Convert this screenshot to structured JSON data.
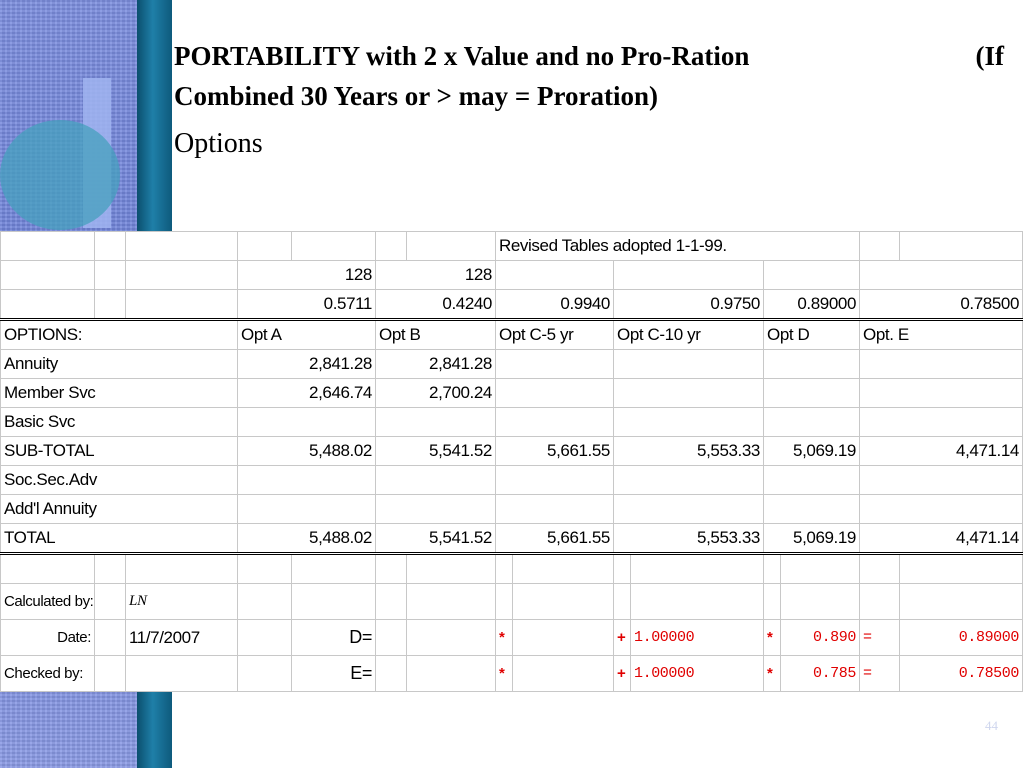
{
  "slide": {
    "title_line1a": "PORTABILITY with 2 x Value and no Pro-Ration",
    "title_line1b": "(If",
    "title_line2": "Combined 30 Years or > may = Proration)",
    "subtitle": "Options",
    "page_number": "44"
  },
  "sheet": {
    "header_note": "Revised Tables adopted 1-1-99.",
    "row_128": [
      "128",
      "128"
    ],
    "factors": [
      "0.5711",
      "0.4240",
      "0.9940",
      "0.9750",
      "0.89000",
      "0.78500"
    ],
    "options_label": "OPTIONS:",
    "columns": [
      "Opt A",
      "Opt B",
      "Opt C-5 yr",
      "Opt C-10 yr",
      "Opt D",
      "Opt. E"
    ],
    "rows": [
      {
        "label": "Annuity",
        "values": [
          "2,841.28",
          "2,841.28",
          "",
          "",
          "",
          ""
        ]
      },
      {
        "label": "Member Svc",
        "values": [
          "2,646.74",
          "2,700.24",
          "",
          "",
          "",
          ""
        ]
      },
      {
        "label": "Basic Svc",
        "values": [
          "",
          "",
          "",
          "",
          "",
          ""
        ]
      },
      {
        "label": "SUB-TOTAL",
        "values": [
          "5,488.02",
          "5,541.52",
          "5,661.55",
          "5,553.33",
          "5,069.19",
          "4,471.14"
        ]
      },
      {
        "label": "Soc.Sec.Adv",
        "values": [
          "",
          "",
          "",
          "",
          "",
          ""
        ]
      },
      {
        "label": "Add'l Annuity",
        "values": [
          "",
          "",
          "",
          "",
          "",
          ""
        ]
      },
      {
        "label": "TOTAL",
        "values": [
          "5,488.02",
          "5,541.52",
          "5,661.55",
          "5,553.33",
          "5,069.19",
          "4,471.14"
        ]
      }
    ],
    "calculated_by_label": "Calculated by:",
    "calculated_by_value": "LN",
    "date_label": "Date:",
    "date_value": "11/7/2007",
    "checked_by_label": "Checked by:",
    "formula_d": {
      "label": "D=",
      "star1": "*",
      "plus": "+",
      "one": "1.00000",
      "star2": "*",
      "factor": "0.890",
      "eq": "=",
      "result": "0.89000"
    },
    "formula_e": {
      "label": "E=",
      "star1": "*",
      "plus": "+",
      "one": "1.00000",
      "star2": "*",
      "factor": "0.785",
      "eq": "=",
      "result": "0.78500"
    }
  }
}
